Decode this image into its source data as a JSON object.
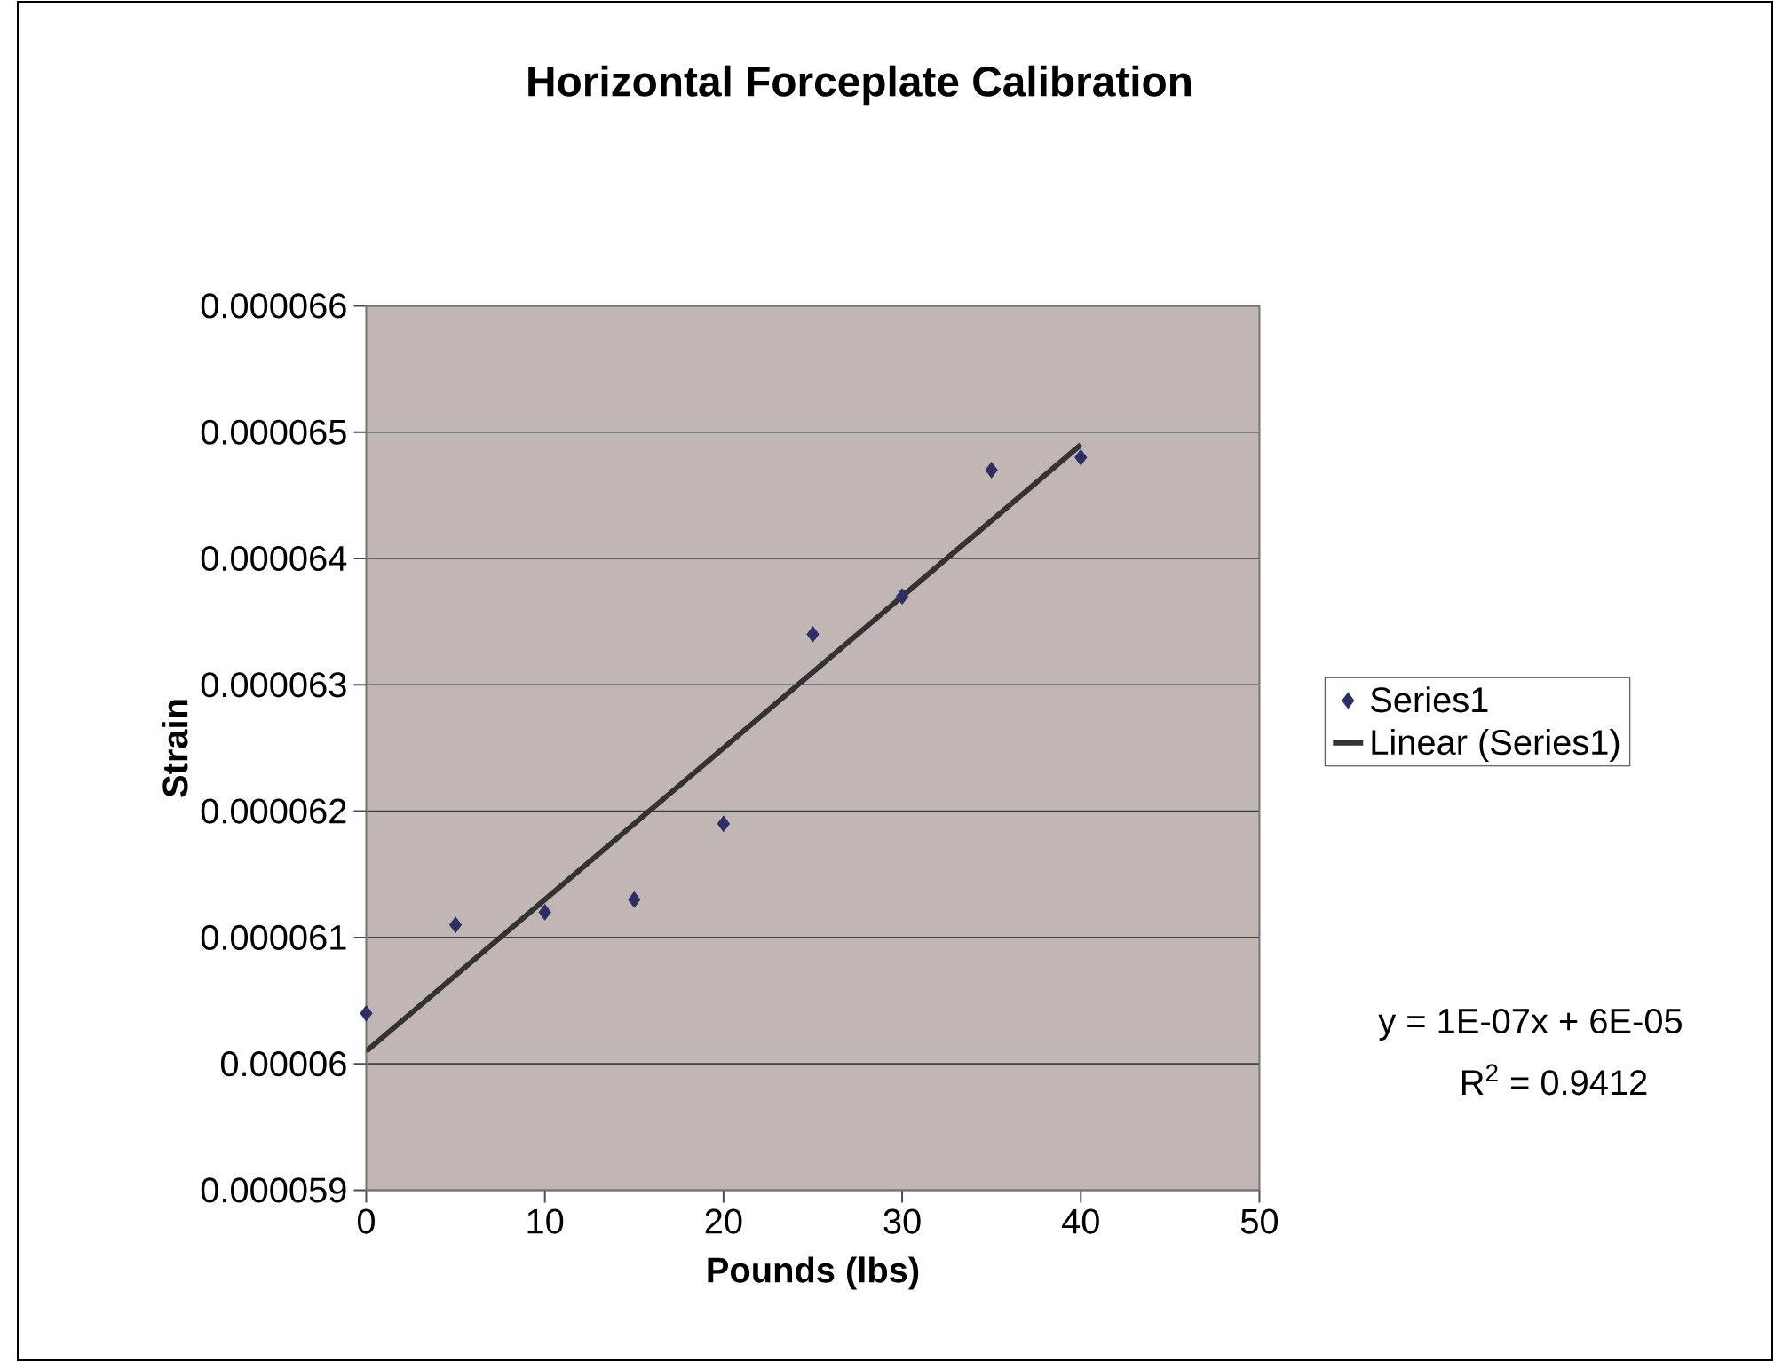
{
  "chart_data": {
    "type": "scatter",
    "title": "Horizontal Forceplate Calibration",
    "xlabel": "Pounds (lbs)",
    "ylabel": "Strain",
    "xlim": [
      0,
      50
    ],
    "xticks": [
      0,
      10,
      20,
      30,
      40,
      50
    ],
    "ylim": [
      5.9e-05,
      6.6e-05
    ],
    "yticks": [
      {
        "value": 5.9e-05,
        "label": "0.000059"
      },
      {
        "value": 6e-05,
        "label": "0.00006"
      },
      {
        "value": 6.1e-05,
        "label": "0.000061"
      },
      {
        "value": 6.2e-05,
        "label": "0.000062"
      },
      {
        "value": 6.3e-05,
        "label": "0.000063"
      },
      {
        "value": 6.4e-05,
        "label": "0.000064"
      },
      {
        "value": 6.5e-05,
        "label": "0.000065"
      },
      {
        "value": 6.6e-05,
        "label": "0.000066"
      }
    ],
    "grid": "y",
    "legend": "right",
    "marker": "diamond",
    "series": [
      {
        "name": "Series1",
        "color": "#2e2e66",
        "x": [
          0,
          5,
          10,
          15,
          20,
          25,
          30,
          35,
          40
        ],
        "values": [
          6.04e-05,
          6.11e-05,
          6.12e-05,
          6.13e-05,
          6.19e-05,
          6.34e-05,
          6.37e-05,
          6.47e-05,
          6.48e-05
        ]
      },
      {
        "name": "Linear (Series1)",
        "type": "line",
        "color": "#333333",
        "line_style": "solid",
        "marker": "none",
        "x": [
          0,
          40
        ],
        "values": [
          6.01e-05,
          6.49e-05
        ]
      }
    ],
    "annotations": [
      "y = 1E-07x + 6E-05",
      "R$^{2}$ = 0.9412"
    ]
  }
}
